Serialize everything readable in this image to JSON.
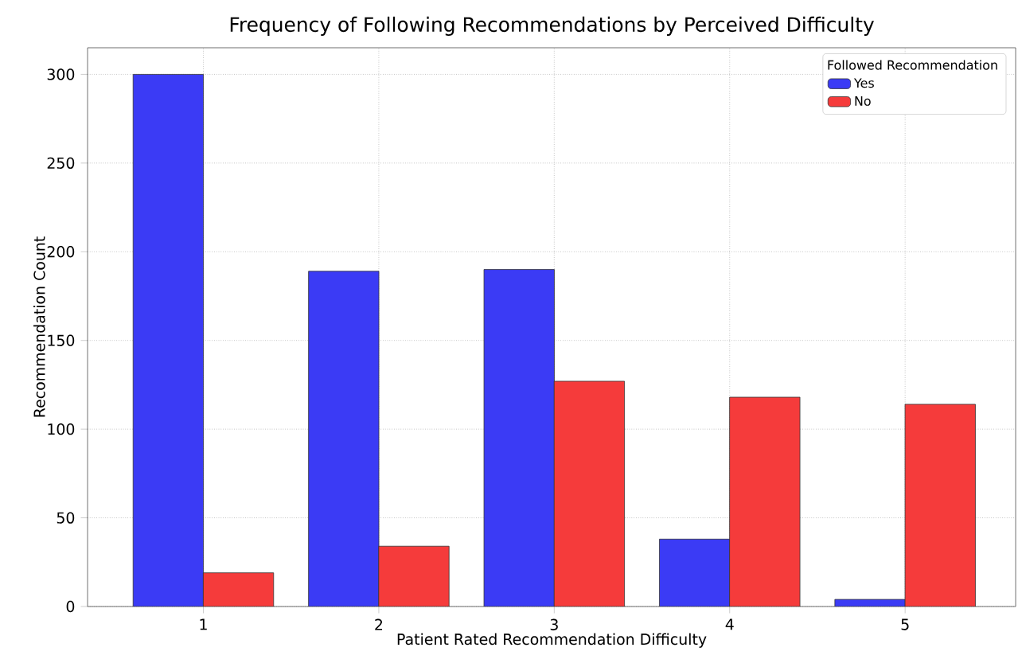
{
  "chart_data": {
    "type": "bar",
    "title": "Frequency of Following Recommendations by Perceived Difficulty",
    "xlabel": "Patient Rated Recommendation Difficulty",
    "ylabel": "Recommendation Count",
    "legend_title": "Followed Recommendation",
    "categories": [
      "1",
      "2",
      "3",
      "4",
      "5"
    ],
    "series": [
      {
        "name": "Yes",
        "color": "#3b3bf5",
        "values": [
          300,
          189,
          190,
          38,
          4
        ]
      },
      {
        "name": "No",
        "color": "#f53b3b",
        "values": [
          19,
          34,
          127,
          118,
          114
        ]
      }
    ],
    "ylim": [
      0,
      315
    ],
    "yticks": [
      0,
      50,
      100,
      150,
      200,
      250,
      300
    ],
    "grid": true,
    "legend": "top right"
  }
}
